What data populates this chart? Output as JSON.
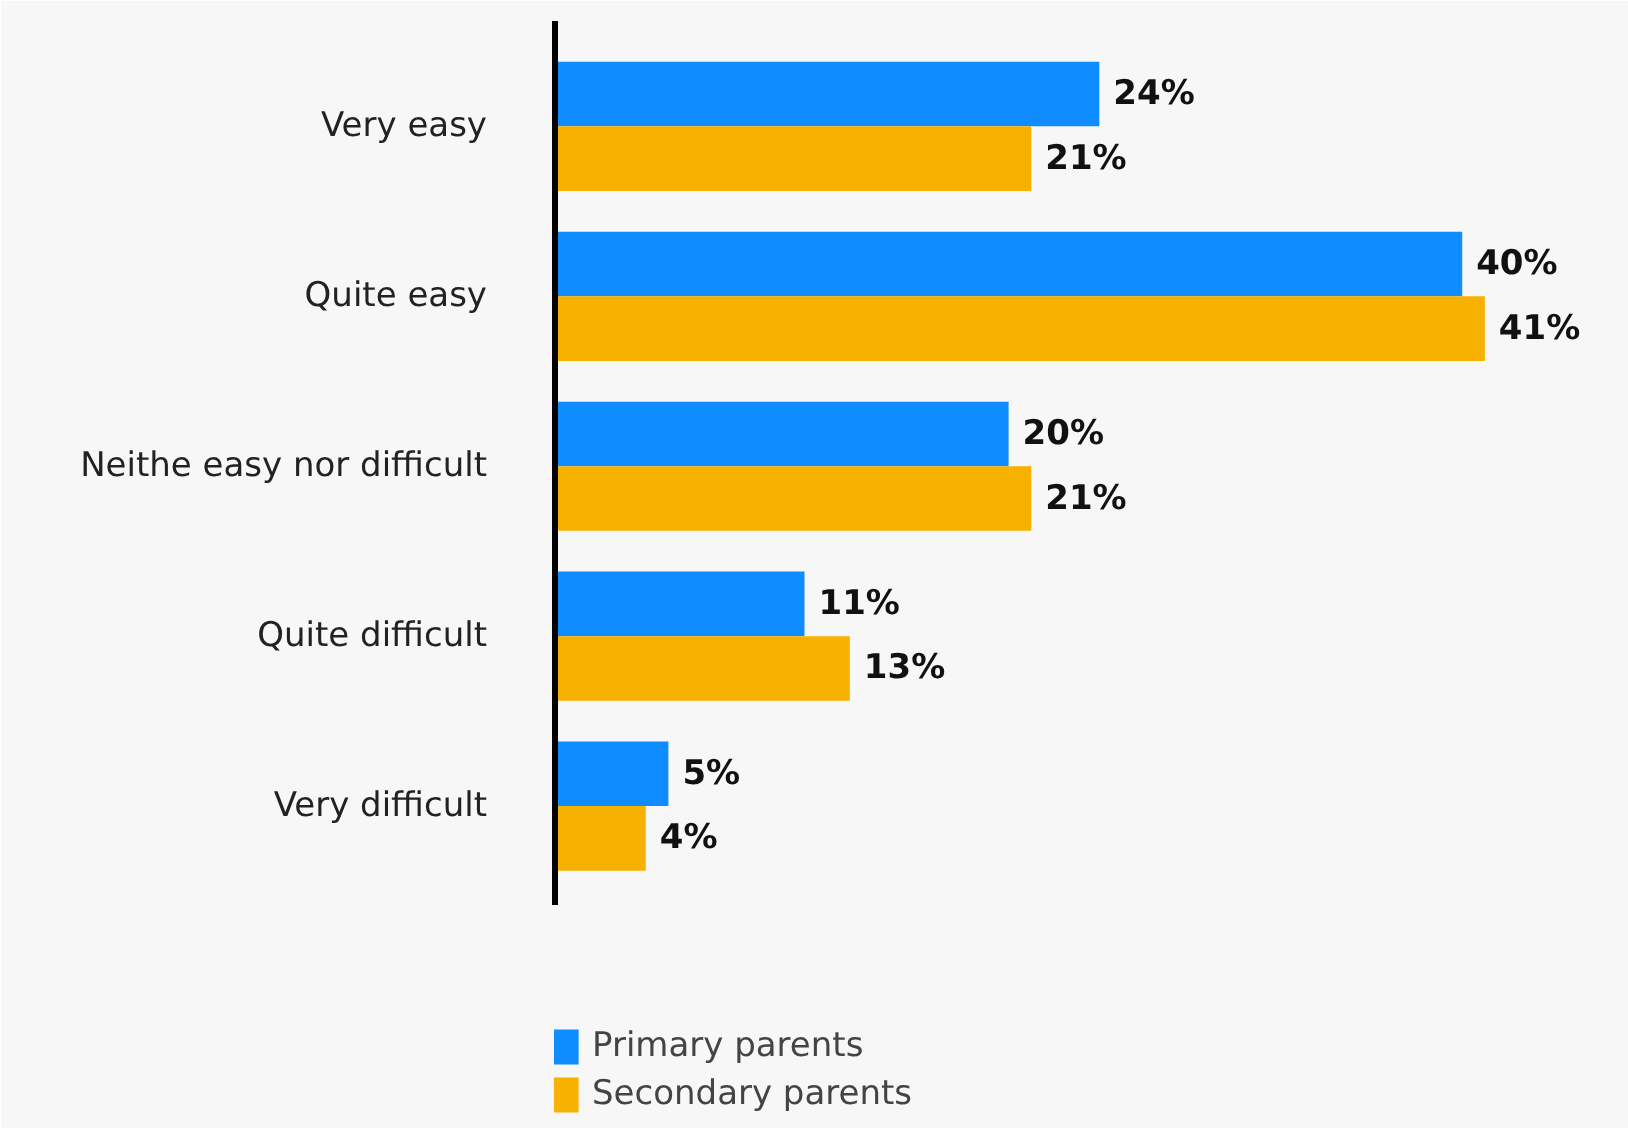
{
  "chart_data": {
    "type": "bar",
    "orientation": "horizontal",
    "categories": [
      "Very easy",
      "Quite easy",
      "Neithe easy nor difficult",
      "Quite difficult",
      "Very difficult"
    ],
    "series": [
      {
        "name": "Primary parents",
        "color": "#0f8cff",
        "values": [
          24,
          40,
          20,
          11,
          5
        ],
        "value_labels": [
          "24%",
          "40%",
          "20%",
          "11%",
          "5%"
        ]
      },
      {
        "name": "Secondary parents",
        "color": "#f7b100",
        "values": [
          21,
          41,
          21,
          13,
          4
        ],
        "value_labels": [
          "21%",
          "41%",
          "21%",
          "13%",
          "4%"
        ]
      }
    ],
    "legend": "bottom"
  }
}
